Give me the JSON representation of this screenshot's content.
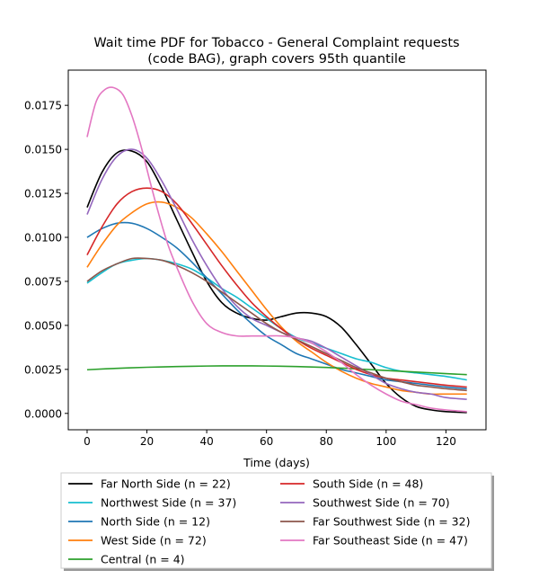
{
  "chart_data": {
    "type": "line",
    "title_line1": "Wait time PDF for Tobacco - General Complaint  requests",
    "title_line2": "(code BAG), graph covers 95th quantile",
    "xlabel": "Time (days)",
    "ylabel": "",
    "xlim": [
      -6.3,
      133.4
    ],
    "ylim": [
      -0.00093,
      0.0195
    ],
    "xticks": [
      0,
      20,
      40,
      60,
      80,
      100,
      120
    ],
    "xtick_labels": [
      "0",
      "20",
      "40",
      "60",
      "80",
      "100",
      "120"
    ],
    "yticks": [
      0.0,
      0.0025,
      0.005,
      0.0075,
      0.01,
      0.0125,
      0.015,
      0.0175
    ],
    "ytick_labels": [
      "0.0000",
      "0.0025",
      "0.0050",
      "0.0075",
      "0.0100",
      "0.0125",
      "0.0150",
      "0.0175"
    ],
    "grid": false,
    "legend_placement": "below plot, two columns",
    "series": [
      {
        "name": "Far North Side (n = 22)",
        "color": "#000000",
        "points": [
          [
            0,
            0.0117
          ],
          [
            5,
            0.0137
          ],
          [
            10,
            0.0148
          ],
          [
            15,
            0.0149
          ],
          [
            20,
            0.0143
          ],
          [
            25,
            0.0128
          ],
          [
            30,
            0.011
          ],
          [
            35,
            0.0092
          ],
          [
            40,
            0.0075
          ],
          [
            45,
            0.0063
          ],
          [
            50,
            0.0057
          ],
          [
            55,
            0.0054
          ],
          [
            60,
            0.0053
          ],
          [
            65,
            0.0055
          ],
          [
            70,
            0.0057
          ],
          [
            75,
            0.0057
          ],
          [
            80,
            0.0055
          ],
          [
            85,
            0.0049
          ],
          [
            90,
            0.0039
          ],
          [
            95,
            0.0028
          ],
          [
            100,
            0.0017
          ],
          [
            105,
            0.0009
          ],
          [
            110,
            0.0004
          ],
          [
            115,
            0.0002
          ],
          [
            120,
            0.0001
          ],
          [
            127,
            5e-05
          ]
        ]
      },
      {
        "name": "Northwest Side (n = 37)",
        "color": "#17becf",
        "points": [
          [
            0,
            0.0074
          ],
          [
            5,
            0.008
          ],
          [
            10,
            0.0085
          ],
          [
            15,
            0.0087
          ],
          [
            20,
            0.0088
          ],
          [
            25,
            0.0087
          ],
          [
            30,
            0.0085
          ],
          [
            35,
            0.0082
          ],
          [
            40,
            0.0077
          ],
          [
            45,
            0.0071
          ],
          [
            50,
            0.0066
          ],
          [
            55,
            0.006
          ],
          [
            60,
            0.0054
          ],
          [
            65,
            0.0048
          ],
          [
            70,
            0.0043
          ],
          [
            75,
            0.004
          ],
          [
            80,
            0.0037
          ],
          [
            85,
            0.0034
          ],
          [
            90,
            0.0031
          ],
          [
            95,
            0.0029
          ],
          [
            100,
            0.0026
          ],
          [
            105,
            0.0024
          ],
          [
            110,
            0.0023
          ],
          [
            115,
            0.0022
          ],
          [
            120,
            0.0021
          ],
          [
            127,
            0.0019
          ]
        ]
      },
      {
        "name": "North Side (n = 12)",
        "color": "#1f77b4",
        "points": [
          [
            0,
            0.01
          ],
          [
            5,
            0.0105
          ],
          [
            10,
            0.0108
          ],
          [
            15,
            0.0108
          ],
          [
            20,
            0.0105
          ],
          [
            25,
            0.01
          ],
          [
            30,
            0.0094
          ],
          [
            35,
            0.0086
          ],
          [
            40,
            0.0077
          ],
          [
            45,
            0.0068
          ],
          [
            50,
            0.0059
          ],
          [
            55,
            0.0051
          ],
          [
            60,
            0.0044
          ],
          [
            65,
            0.0039
          ],
          [
            70,
            0.0034
          ],
          [
            75,
            0.0031
          ],
          [
            80,
            0.0028
          ],
          [
            85,
            0.0025
          ],
          [
            90,
            0.0023
          ],
          [
            95,
            0.0021
          ],
          [
            100,
            0.0019
          ],
          [
            105,
            0.0018
          ],
          [
            110,
            0.0017
          ],
          [
            115,
            0.0016
          ],
          [
            120,
            0.0015
          ],
          [
            127,
            0.0014
          ]
        ]
      },
      {
        "name": "West Side (n = 72)",
        "color": "#ff7f0e",
        "points": [
          [
            0,
            0.0083
          ],
          [
            5,
            0.0096
          ],
          [
            10,
            0.0107
          ],
          [
            15,
            0.0114
          ],
          [
            20,
            0.0119
          ],
          [
            25,
            0.012
          ],
          [
            30,
            0.0117
          ],
          [
            35,
            0.0111
          ],
          [
            40,
            0.0102
          ],
          [
            45,
            0.0092
          ],
          [
            50,
            0.0081
          ],
          [
            55,
            0.007
          ],
          [
            60,
            0.0059
          ],
          [
            65,
            0.0049
          ],
          [
            70,
            0.0041
          ],
          [
            75,
            0.0035
          ],
          [
            80,
            0.0029
          ],
          [
            85,
            0.0024
          ],
          [
            90,
            0.002
          ],
          [
            95,
            0.0017
          ],
          [
            100,
            0.0015
          ],
          [
            105,
            0.0013
          ],
          [
            110,
            0.0012
          ],
          [
            115,
            0.0011
          ],
          [
            120,
            0.0011
          ],
          [
            127,
            0.0011
          ]
        ]
      },
      {
        "name": "Central (n = 4)",
        "color": "#2ca02c",
        "points": [
          [
            0,
            0.00248
          ],
          [
            10,
            0.00256
          ],
          [
            20,
            0.00262
          ],
          [
            30,
            0.00266
          ],
          [
            40,
            0.00269
          ],
          [
            50,
            0.0027
          ],
          [
            60,
            0.00269
          ],
          [
            70,
            0.00266
          ],
          [
            80,
            0.00261
          ],
          [
            90,
            0.00253
          ],
          [
            100,
            0.00244
          ],
          [
            110,
            0.00235
          ],
          [
            120,
            0.00226
          ],
          [
            127,
            0.0022
          ]
        ]
      },
      {
        "name": "South Side (n = 48)",
        "color": "#d62728",
        "points": [
          [
            0,
            0.009
          ],
          [
            5,
            0.0106
          ],
          [
            10,
            0.0119
          ],
          [
            15,
            0.0126
          ],
          [
            20,
            0.0128
          ],
          [
            25,
            0.0126
          ],
          [
            30,
            0.0119
          ],
          [
            35,
            0.0108
          ],
          [
            40,
            0.0096
          ],
          [
            45,
            0.0084
          ],
          [
            50,
            0.0073
          ],
          [
            55,
            0.0063
          ],
          [
            60,
            0.0055
          ],
          [
            65,
            0.0048
          ],
          [
            70,
            0.0042
          ],
          [
            75,
            0.0037
          ],
          [
            80,
            0.0033
          ],
          [
            85,
            0.0029
          ],
          [
            90,
            0.0025
          ],
          [
            95,
            0.0022
          ],
          [
            100,
            0.002
          ],
          [
            105,
            0.0019
          ],
          [
            110,
            0.0018
          ],
          [
            115,
            0.0017
          ],
          [
            120,
            0.0016
          ],
          [
            127,
            0.0015
          ]
        ]
      },
      {
        "name": "Southwest Side (n = 70)",
        "color": "#9467bd",
        "points": [
          [
            0,
            0.0113
          ],
          [
            5,
            0.0133
          ],
          [
            10,
            0.0146
          ],
          [
            15,
            0.015
          ],
          [
            20,
            0.0145
          ],
          [
            25,
            0.0132
          ],
          [
            30,
            0.0116
          ],
          [
            35,
            0.0099
          ],
          [
            40,
            0.0084
          ],
          [
            45,
            0.0071
          ],
          [
            50,
            0.0061
          ],
          [
            55,
            0.0054
          ],
          [
            60,
            0.005
          ],
          [
            65,
            0.0046
          ],
          [
            70,
            0.0043
          ],
          [
            75,
            0.0041
          ],
          [
            80,
            0.0037
          ],
          [
            85,
            0.0032
          ],
          [
            90,
            0.0027
          ],
          [
            95,
            0.0022
          ],
          [
            100,
            0.0017
          ],
          [
            105,
            0.0014
          ],
          [
            110,
            0.0012
          ],
          [
            115,
            0.0011
          ],
          [
            120,
            0.0009
          ],
          [
            127,
            0.0008
          ]
        ]
      },
      {
        "name": "Far Southwest Side (n = 32)",
        "color": "#8c564b",
        "points": [
          [
            0,
            0.0075
          ],
          [
            5,
            0.0081
          ],
          [
            10,
            0.0085
          ],
          [
            15,
            0.0088
          ],
          [
            20,
            0.0088
          ],
          [
            25,
            0.0087
          ],
          [
            30,
            0.0084
          ],
          [
            35,
            0.008
          ],
          [
            40,
            0.0075
          ],
          [
            45,
            0.0069
          ],
          [
            50,
            0.0063
          ],
          [
            55,
            0.0057
          ],
          [
            60,
            0.0051
          ],
          [
            65,
            0.0046
          ],
          [
            70,
            0.0042
          ],
          [
            75,
            0.0038
          ],
          [
            80,
            0.0034
          ],
          [
            85,
            0.003
          ],
          [
            90,
            0.0026
          ],
          [
            95,
            0.0023
          ],
          [
            100,
            0.002
          ],
          [
            105,
            0.0018
          ],
          [
            110,
            0.0016
          ],
          [
            115,
            0.0015
          ],
          [
            120,
            0.0014
          ],
          [
            127,
            0.0013
          ]
        ]
      },
      {
        "name": "Far Southeast Side (n = 47)",
        "color": "#e377c2",
        "points": [
          [
            0,
            0.0157
          ],
          [
            3,
            0.0177
          ],
          [
            6,
            0.0184
          ],
          [
            9,
            0.0185
          ],
          [
            12,
            0.0181
          ],
          [
            15,
            0.0169
          ],
          [
            18,
            0.0152
          ],
          [
            21,
            0.0132
          ],
          [
            24,
            0.0113
          ],
          [
            27,
            0.0096
          ],
          [
            30,
            0.0083
          ],
          [
            35,
            0.0064
          ],
          [
            40,
            0.0051
          ],
          [
            45,
            0.0046
          ],
          [
            50,
            0.0044
          ],
          [
            55,
            0.0044
          ],
          [
            60,
            0.0044
          ],
          [
            65,
            0.0044
          ],
          [
            70,
            0.0043
          ],
          [
            75,
            0.004
          ],
          [
            80,
            0.0035
          ],
          [
            85,
            0.0029
          ],
          [
            90,
            0.0022
          ],
          [
            95,
            0.0016
          ],
          [
            100,
            0.0011
          ],
          [
            105,
            0.0007
          ],
          [
            110,
            0.0005
          ],
          [
            115,
            0.0003
          ],
          [
            120,
            0.0002
          ],
          [
            127,
            0.0001
          ]
        ]
      }
    ]
  }
}
